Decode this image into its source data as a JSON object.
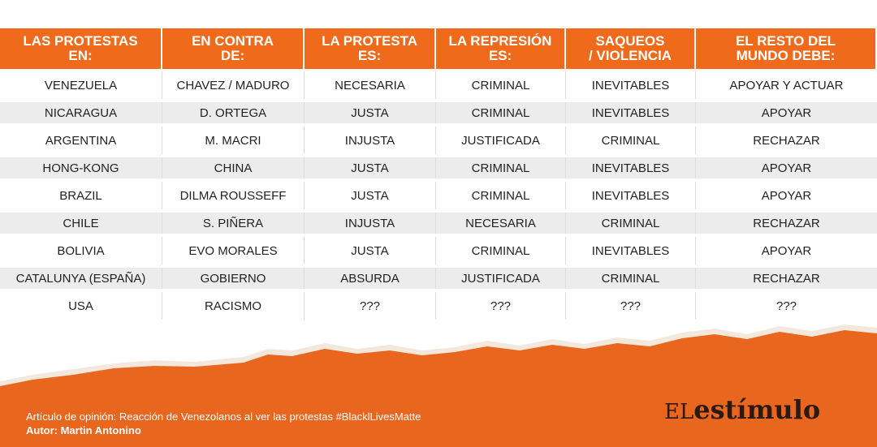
{
  "header": {
    "columns": [
      "LAS PROTESTAS\nEN:",
      "EN CONTRA\nDE:",
      "LA PROTESTA\nES:",
      "LA REPRESIÓN\nES:",
      "SAQUEOS\n/ VIOLENCIA",
      "EL RESTO DEL\nMUNDO DEBE:"
    ]
  },
  "table": {
    "rows": [
      [
        "VENEZUELA",
        "CHAVEZ / MADURO",
        "NECESARIA",
        "CRIMINAL",
        "INEVITABLES",
        "APOYAR Y ACTUAR"
      ],
      [
        "NICARAGUA",
        "D. ORTEGA",
        "JUSTA",
        "CRIMINAL",
        "INEVITABLES",
        "APOYAR"
      ],
      [
        "ARGENTINA",
        "M. MACRI",
        "INJUSTA",
        "JUSTIFICADA",
        "CRIMINAL",
        "RECHAZAR"
      ],
      [
        "HONG-KONG",
        "CHINA",
        "JUSTA",
        "CRIMINAL",
        "INEVITABLES",
        "APOYAR"
      ],
      [
        "BRAZIL",
        "DILMA ROUSSEFF",
        "JUSTA",
        "CRIMINAL",
        "INEVITABLES",
        "APOYAR"
      ],
      [
        "CHILE",
        "S. PIÑERA",
        "INJUSTA",
        "NECESARIA",
        "CRIMINAL",
        "RECHAZAR"
      ],
      [
        "BOLIVIA",
        "EVO MORALES",
        "JUSTA",
        "CRIMINAL",
        "INEVITABLES",
        "APOYAR"
      ],
      [
        "CATALUNYA (ESPAÑA)",
        "GOBIERNO",
        "ABSURDA",
        "JUSTIFICADA",
        "CRIMINAL",
        "RECHAZAR"
      ],
      [
        "USA",
        "RACISMO",
        "???",
        "???",
        "???",
        "???"
      ]
    ]
  },
  "footer": {
    "article": "Artículo de opinión: Reacción de Venezolanos al ver las protestas #BlacklLivesMatte",
    "author": "Autor: Martin Antonino"
  },
  "logo": {
    "prefix": "EL",
    "name": "estímulo"
  }
}
